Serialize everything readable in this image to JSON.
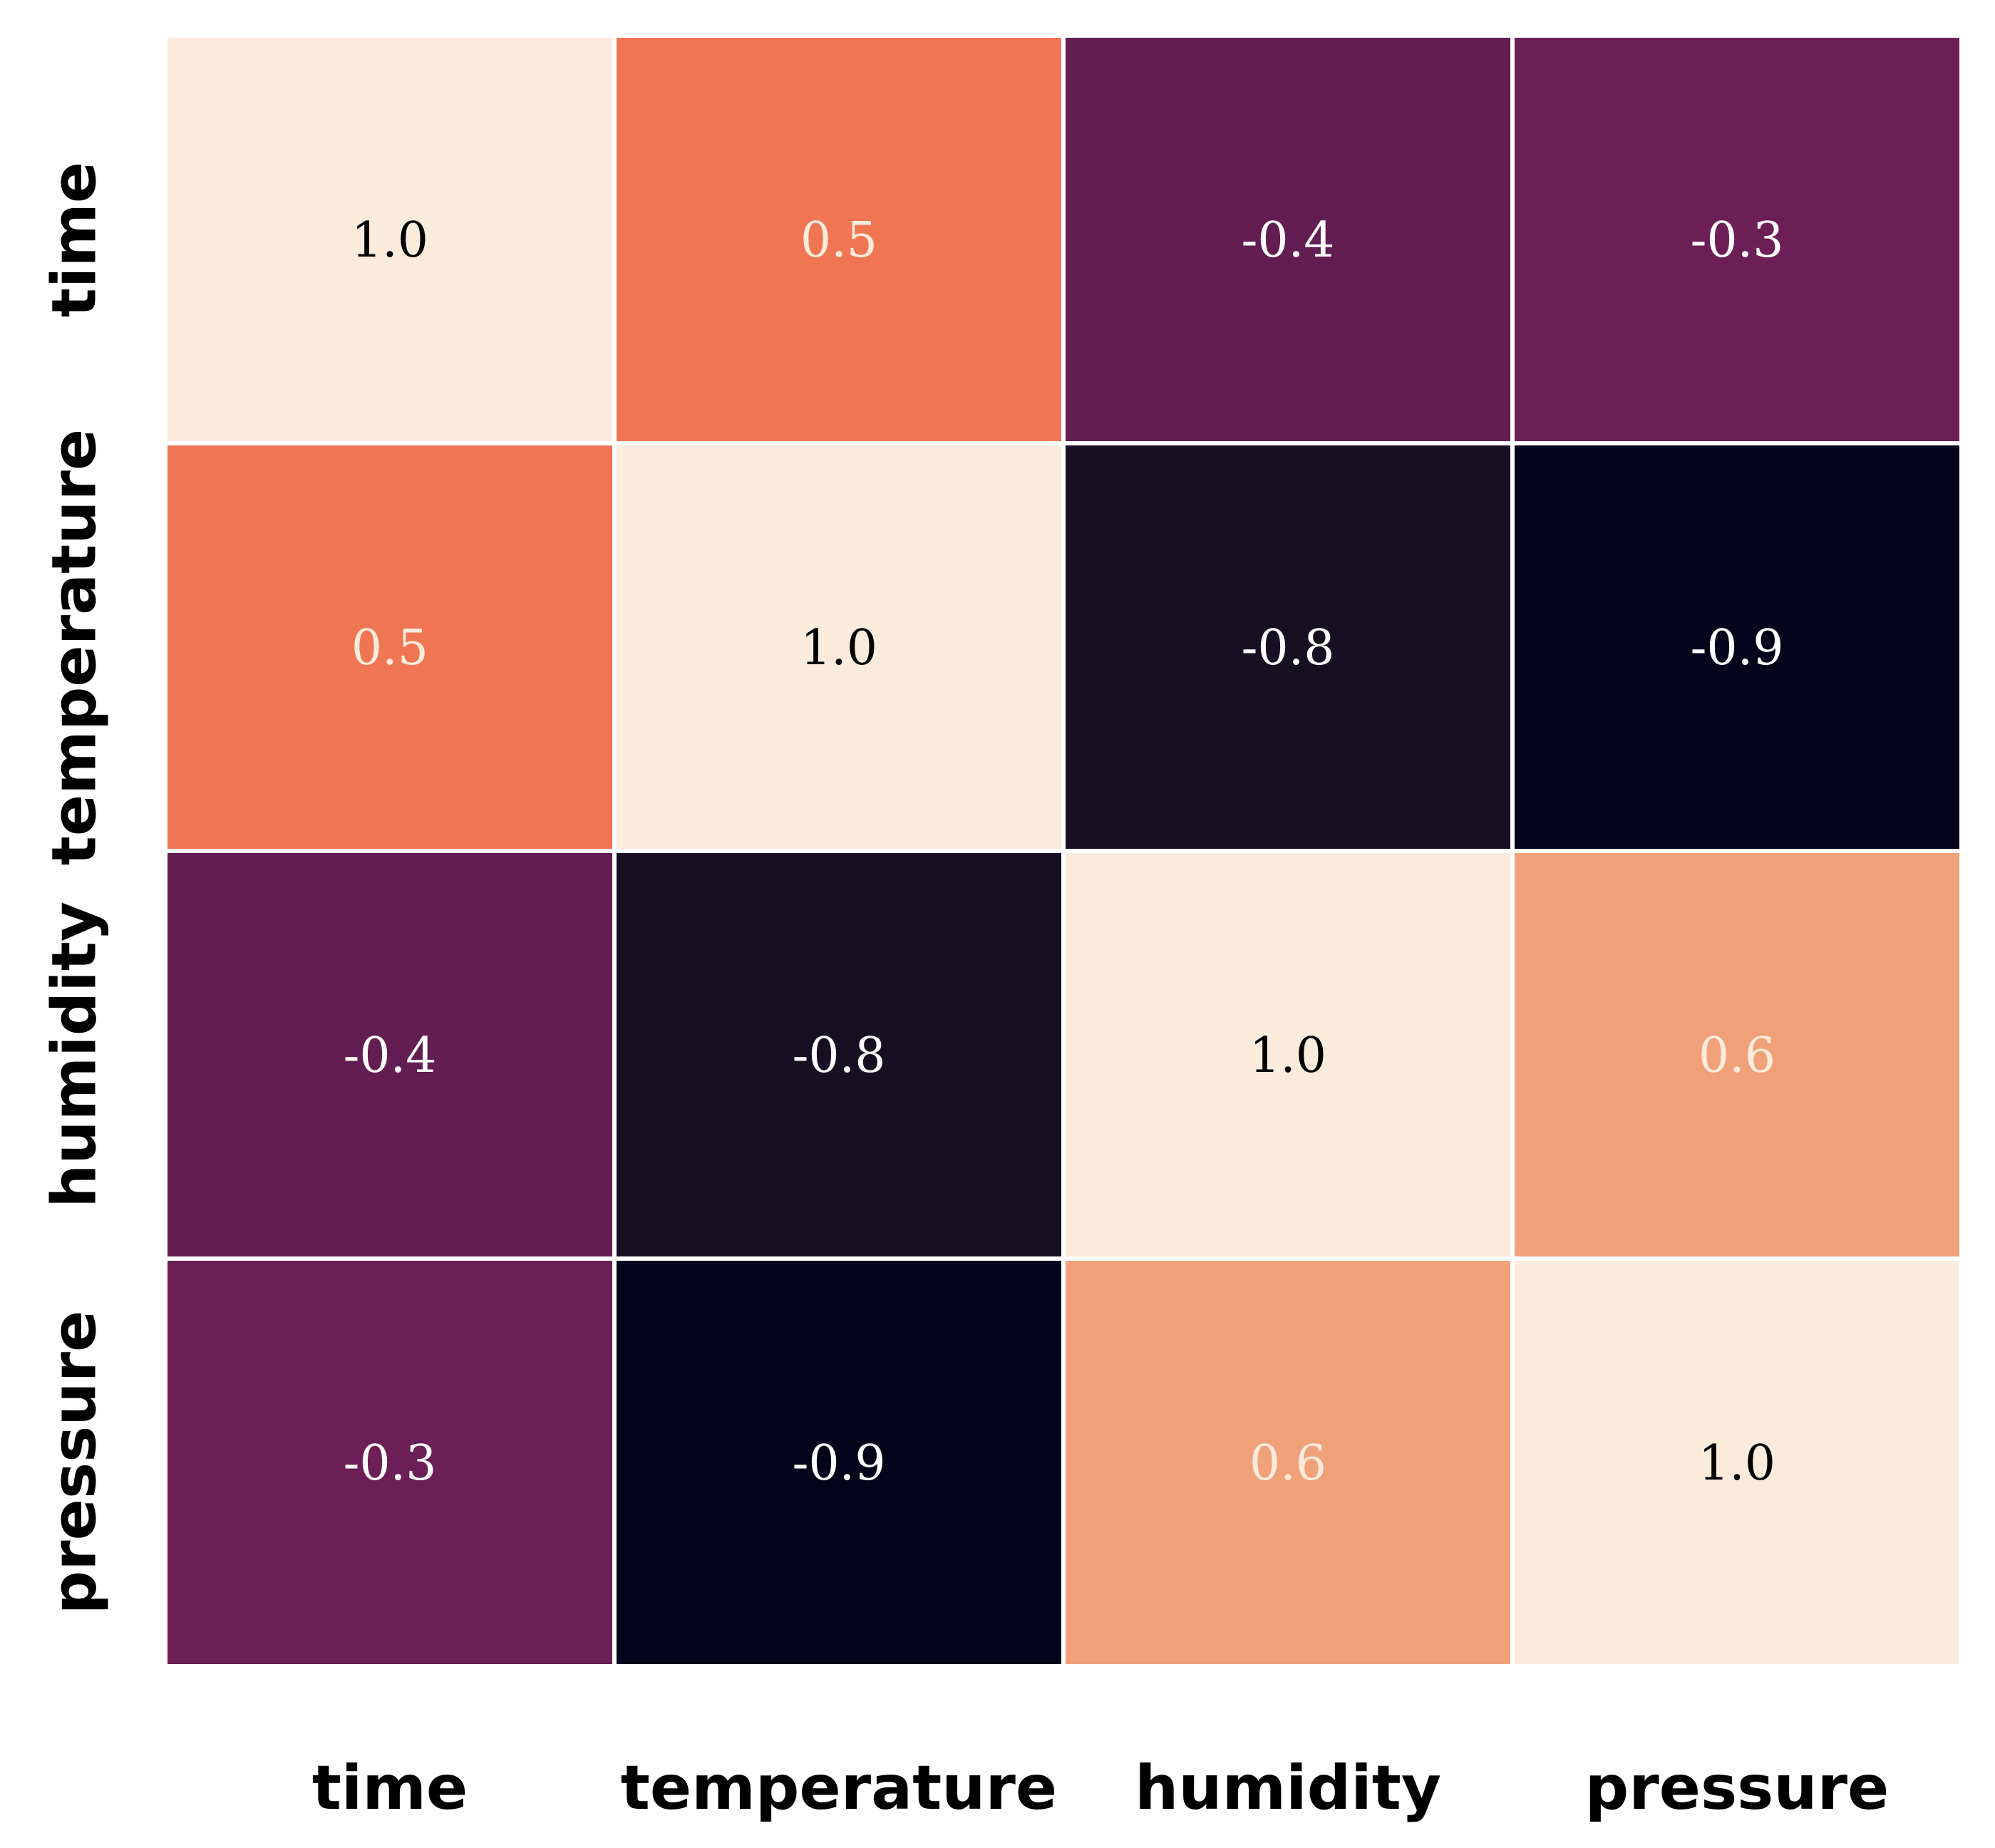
{
  "chart_data": {
    "type": "heatmap",
    "title": "",
    "xlabel": "",
    "ylabel": "",
    "x_categories": [
      "time",
      "temperature",
      "humidity",
      "pressure"
    ],
    "y_categories": [
      "time",
      "temperature",
      "humidity",
      "pressure"
    ],
    "values": [
      [
        1.0,
        0.5,
        -0.4,
        -0.3
      ],
      [
        0.5,
        1.0,
        -0.8,
        -0.9
      ],
      [
        -0.4,
        -0.8,
        1.0,
        0.6
      ],
      [
        -0.3,
        -0.9,
        0.6,
        1.0
      ]
    ],
    "value_labels": [
      [
        "1.0",
        "0.5",
        "-0.4",
        "-0.3"
      ],
      [
        "0.5",
        "1.0",
        "-0.8",
        "-0.9"
      ],
      [
        "-0.4",
        "-0.8",
        "1.0",
        "0.6"
      ],
      [
        "-0.3",
        "-0.9",
        "0.6",
        "1.0"
      ]
    ],
    "colorbar": false,
    "colors": {
      "1.0": "#fbebdc",
      "0.6": "#f1a17a",
      "0.5": "#f07653",
      "-0.3": "#6b1f56",
      "-0.4": "#621e52",
      "-0.8": "#171023",
      "-0.9": "#04051a"
    },
    "light_text_color": "#ffffff",
    "dark_text_color": "#000000",
    "warm_text_color": "#fbebdc",
    "grid_line_color": "#ffffff"
  }
}
